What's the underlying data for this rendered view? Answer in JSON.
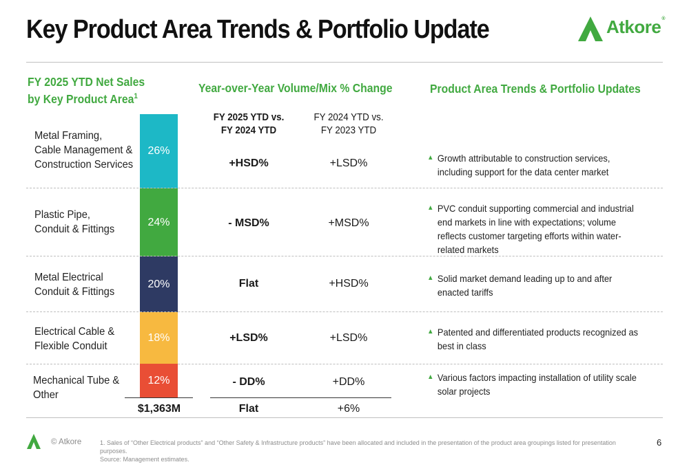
{
  "title": "Key Product Area Trends & Portfolio Update",
  "logo": {
    "text": "Atkore",
    "mark": "®",
    "icon": "atkore-a-logo-icon",
    "color": "#41a940"
  },
  "headers": {
    "left_line1": "FY 2025 YTD Net Sales",
    "left_line2": "by Key Product Area",
    "left_sup": "1",
    "middle": "Year-over-Year Volume/Mix % Change",
    "right": "Product Area Trends & Portfolio Updates"
  },
  "columns": {
    "col1_line1": "FY 2025 YTD vs.",
    "col1_line2": "FY 2024 YTD",
    "col2_line1": "FY 2024 YTD vs.",
    "col2_line2": "FY 2023 YTD"
  },
  "rows": [
    {
      "name_lines": [
        "Metal Framing,",
        "Cable Management &",
        "Construction Services"
      ],
      "share": "26%",
      "share_value": 26,
      "color": "#1db8c6",
      "fy25": "+HSD%",
      "fy24": "+LSD%",
      "trend": "Growth attributable to construction services, including support for the data center market"
    },
    {
      "name_lines": [
        "Plastic Pipe,",
        "Conduit & Fittings"
      ],
      "share": "24%",
      "share_value": 24,
      "color": "#41a940",
      "fy25": "- MSD%",
      "fy24": "+MSD%",
      "trend": "PVC conduit supporting commercial and industrial end markets in line with expectations; volume reflects customer targeting efforts within water-related markets"
    },
    {
      "name_lines": [
        "Metal Electrical",
        "Conduit & Fittings"
      ],
      "share": "20%",
      "share_value": 20,
      "color": "#2e3a63",
      "fy25": "Flat",
      "fy24": "+HSD%",
      "trend": "Solid market demand leading up to and after enacted tariffs"
    },
    {
      "name_lines": [
        "Electrical Cable &",
        "Flexible Conduit"
      ],
      "share": "18%",
      "share_value": 18,
      "color": "#f7b940",
      "fy25": "+LSD%",
      "fy24": "+LSD%",
      "trend": "Patented and differentiated products recognized as best in class"
    },
    {
      "name_lines": [
        "Mechanical Tube &",
        "Other"
      ],
      "share": "12%",
      "share_value": 12,
      "color": "#e94e35",
      "fy25": "- DD%",
      "fy24": "+DD%",
      "trend": "Various factors impacting installation of utility scale solar projects"
    }
  ],
  "totals": {
    "net_sales": "$1,363M",
    "fy25": "Flat",
    "fy24": "+6%"
  },
  "footer": {
    "copyright": "© Atkore",
    "footnote1": "1.     Sales of “Other Electrical products” and “Other Safety & Infrastructure products” have been allocated and included in the presentation of the product area groupings listed for presentation purposes.",
    "footnote2": "Source: Management estimates.",
    "page": "6"
  }
}
